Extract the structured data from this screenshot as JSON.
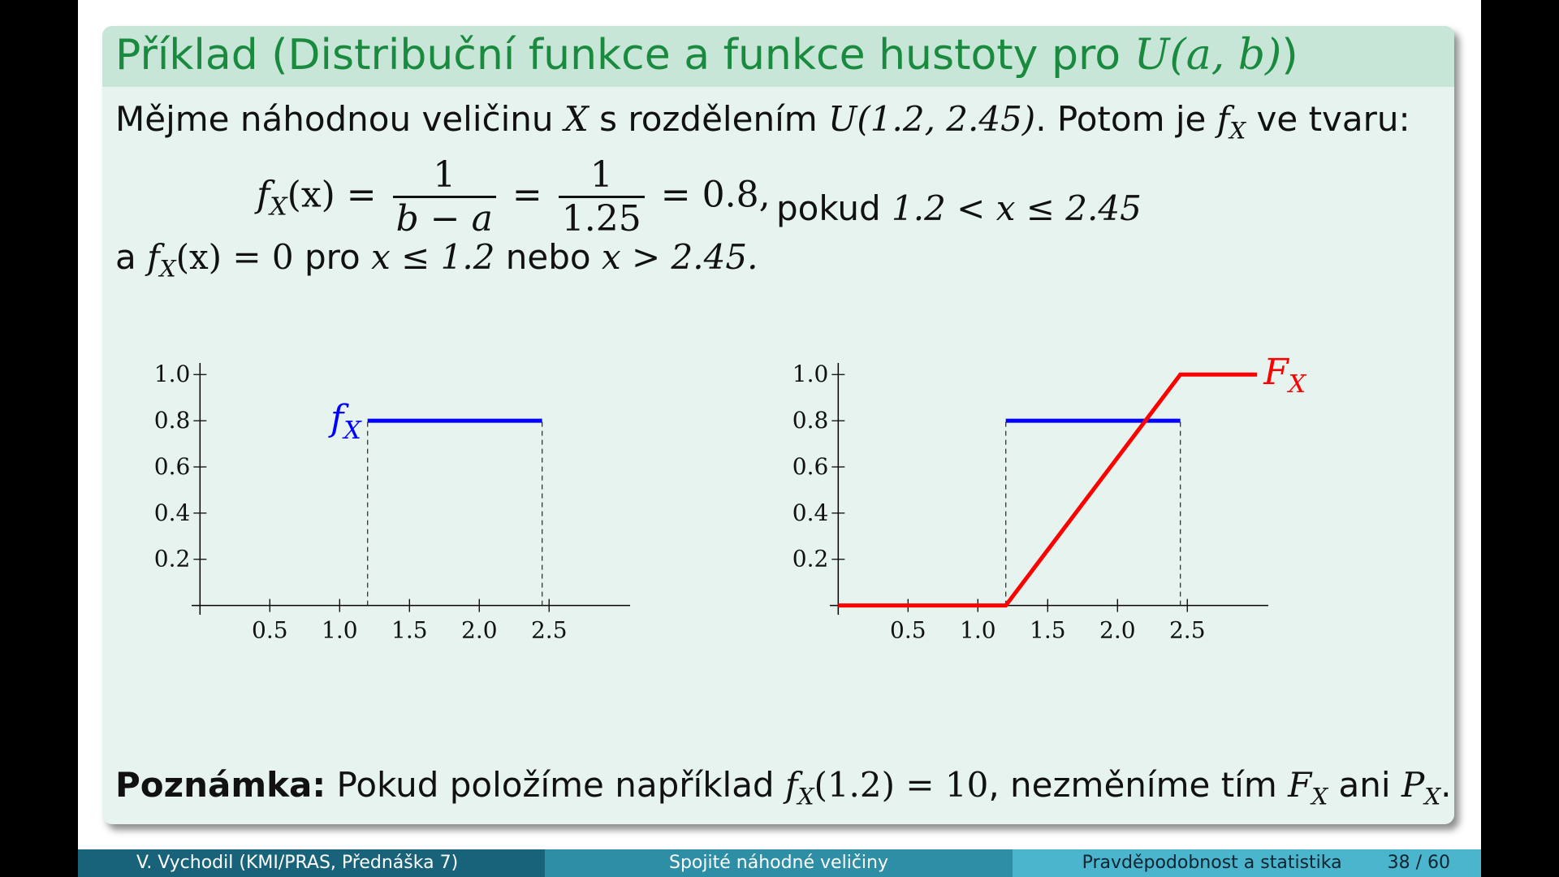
{
  "title": {
    "prefix": "Příklad (Distribuční funkce a funkce hustoty pro ",
    "math": "U(a, b)",
    "suffix": ")"
  },
  "intro": {
    "t1": "Mějme náhodnou veličinu ",
    "m1": "X",
    "t2": " s rozdělením ",
    "m2": "U(1.2, 2.45)",
    "t3": ". Potom je ",
    "m3": "f",
    "m3sub": "X",
    "t4": " ve tvaru:"
  },
  "formula": {
    "lhs": "f",
    "lhs_sub": "X",
    "lhs_arg": "(x) =",
    "f1_num": "1",
    "f1_den": "b − a",
    "eq": "=",
    "f2_num": "1",
    "f2_den": "1.25",
    "result": "= 0.8,",
    "cond_text": "pokud ",
    "cond_math": "1.2 < x ≤ 2.45"
  },
  "otherwise": {
    "t1": "a ",
    "m1": "f",
    "m1sub": "X",
    "m1arg": "(x) = 0",
    "t2": " pro ",
    "m2": "x ≤ 1.2",
    "t3": " nebo ",
    "m3": "x > 2.45."
  },
  "note": {
    "label": "Poznámka:",
    "t1": " Pokud položíme například ",
    "m1": "f",
    "m1sub": "X",
    "m1arg": "(1.2) = 10",
    "t2": ", nezměníme tím ",
    "m2": "F",
    "m2sub": "X",
    "t3": " ani ",
    "m3": "P",
    "m3sub": "X",
    "t4": "."
  },
  "chart_data": [
    {
      "type": "line",
      "x_ticks": [
        "0.5",
        "1.0",
        "1.5",
        "2.0",
        "2.5"
      ],
      "y_ticks": [
        "0.2",
        "0.4",
        "0.6",
        "0.8",
        "1.0"
      ],
      "xlim": [
        -0.06,
        3.08
      ],
      "ylim": [
        -0.04,
        1.05
      ],
      "series": [
        {
          "name": "f",
          "name_sub": "X",
          "color": "#0000ff",
          "x": [
            1.2,
            2.45
          ],
          "y": [
            0.8,
            0.8
          ]
        }
      ],
      "dashed_verticals": [
        1.2,
        2.45
      ]
    },
    {
      "type": "line",
      "x_ticks": [
        "0.5",
        "1.0",
        "1.5",
        "2.0",
        "2.5"
      ],
      "y_ticks": [
        "0.2",
        "0.4",
        "0.6",
        "0.8",
        "1.0"
      ],
      "xlim": [
        -0.06,
        3.08
      ],
      "ylim": [
        -0.04,
        1.05
      ],
      "series": [
        {
          "name": "",
          "color": "#0000ff",
          "x": [
            1.2,
            2.45
          ],
          "y": [
            0.8,
            0.8
          ]
        },
        {
          "name": "F",
          "name_sub": "X",
          "color": "#ff0000",
          "x": [
            0,
            1.2,
            2.45,
            3.0
          ],
          "y": [
            0,
            0,
            1,
            1
          ]
        }
      ],
      "dashed_verticals": [
        1.2,
        2.45
      ]
    }
  ],
  "footer": {
    "author": "V. Vychodil  (KMI/PRAS, Přednáška 7)",
    "topic": "Spojité náhodné veličiny",
    "course": "Pravděpodobnost a statistika",
    "page": "38  /  60"
  }
}
